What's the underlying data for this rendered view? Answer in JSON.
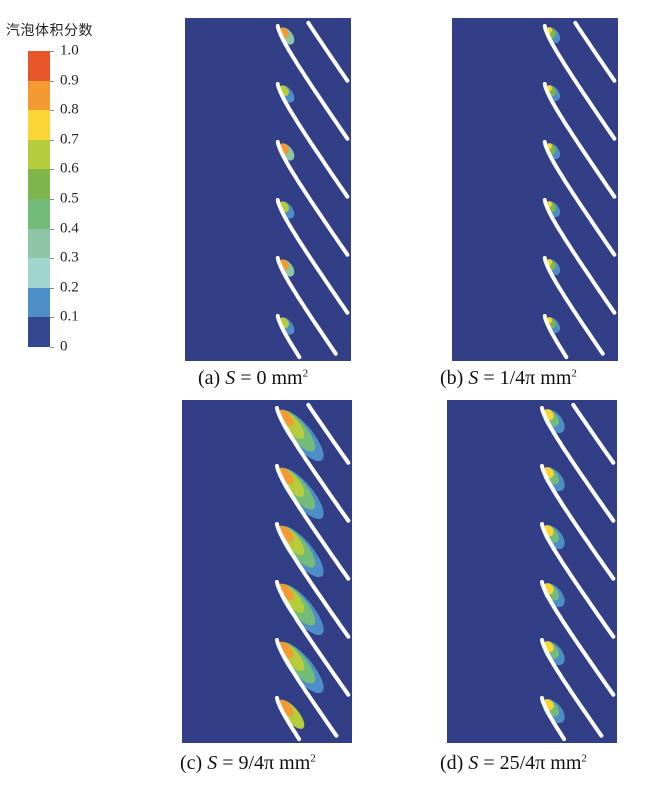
{
  "legend": {
    "title": "汽泡体积分数",
    "ticks": [
      "0",
      "0.1",
      "0.2",
      "0.3",
      "0.4",
      "0.5",
      "0.6",
      "0.7",
      "0.8",
      "0.9",
      "1.0"
    ],
    "colors": [
      "#334690",
      "#4d8ec8",
      "#9fd6d0",
      "#8dc5a6",
      "#72bb78",
      "#7fb54a",
      "#b5cd3c",
      "#fbd533",
      "#f39a33",
      "#e8552b"
    ]
  },
  "background_color": "#323e86",
  "panels": [
    {
      "prefix": "(a) ",
      "var": "S",
      "suffix": " = 0 mm",
      "sup": "2",
      "cavitation": 0
    },
    {
      "prefix": "(b) ",
      "var": "S",
      "suffix": " = 1/4π mm",
      "sup": "2",
      "cavitation": 1
    },
    {
      "prefix": "(c) ",
      "var": "S",
      "suffix": " = 9/4π mm",
      "sup": "2",
      "cavitation": 3
    },
    {
      "prefix": "(d) ",
      "var": "S",
      "suffix": " = 25/4π mm",
      "sup": "2",
      "cavitation": 2
    }
  ]
}
